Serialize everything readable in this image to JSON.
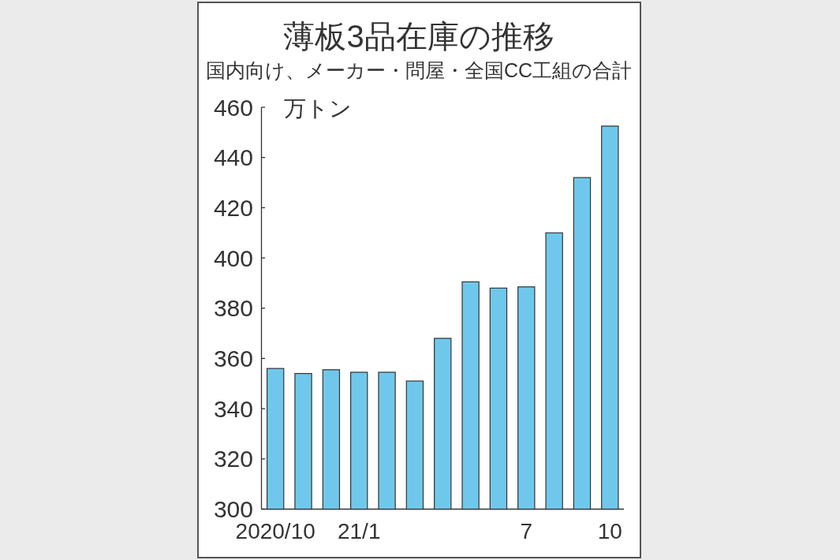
{
  "chart_data": {
    "type": "bar",
    "title": "薄板3品在庫の推移",
    "subtitle": "国内向け、メーカー・問屋・全国CC工組の合計",
    "ylabel": "万トン",
    "categories": [
      "2020/10",
      null,
      null,
      "21/1",
      null,
      null,
      null,
      null,
      null,
      "7",
      null,
      null,
      "10"
    ],
    "values": [
      356,
      354,
      355.5,
      354.5,
      354.5,
      351,
      368,
      390.5,
      388,
      388.5,
      410,
      432,
      452.5
    ],
    "color": "#6fc8ec",
    "ylim": [
      300,
      460
    ],
    "yticks": [
      300,
      320,
      340,
      360,
      380,
      400,
      420,
      440,
      460
    ]
  }
}
